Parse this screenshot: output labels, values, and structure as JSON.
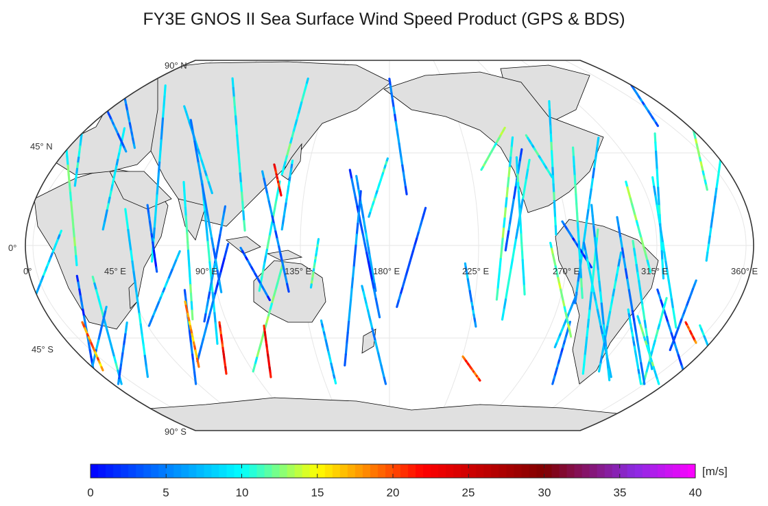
{
  "title": "FY3E GNOS II Sea Surface Wind Speed Product (GPS & BDS)",
  "latitude_labels": [
    "90° N",
    "45° N",
    "0°",
    "45° S",
    "90° S"
  ],
  "longitude_labels": [
    "0°",
    "45° E",
    "90° E",
    "135° E",
    "180° E",
    "225° E",
    "270° E",
    "315° E",
    "360° E"
  ],
  "colorbar": {
    "unit": "[m/s]",
    "ticks": [
      "0",
      "5",
      "10",
      "15",
      "20",
      "25",
      "30",
      "35",
      "40"
    ],
    "min": 0,
    "max": 40,
    "colors": [
      "#0000ff",
      "#00ffff",
      "#ffff00",
      "#ff0000",
      "#800000",
      "#ff00ff"
    ]
  },
  "style": {
    "land": "#e0e0e0",
    "coast": "#000000",
    "frame": "#333333",
    "graticule": "#e6e6e6"
  }
}
